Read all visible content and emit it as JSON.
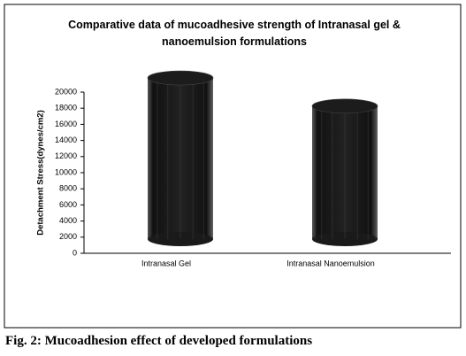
{
  "chart_data": {
    "type": "bar",
    "title": "Comparative data of mucoadhesive strength of Intranasal gel & nanoemulsion formulations",
    "y_label": "Detachment Stress(dynes/cm2)",
    "categories": [
      "Intranasal Gel",
      "Intranasal Nanoemulsion"
    ],
    "values": [
      20000,
      16500
    ],
    "color": "#1c1c1c",
    "ylim": [
      0,
      20000
    ],
    "yticks": [
      0,
      2000,
      4000,
      6000,
      8000,
      10000,
      12000,
      14000,
      16000,
      18000,
      20000
    ],
    "grid": false
  },
  "caption": "Fig. 2: Mucoadhesion effect of developed formulations"
}
